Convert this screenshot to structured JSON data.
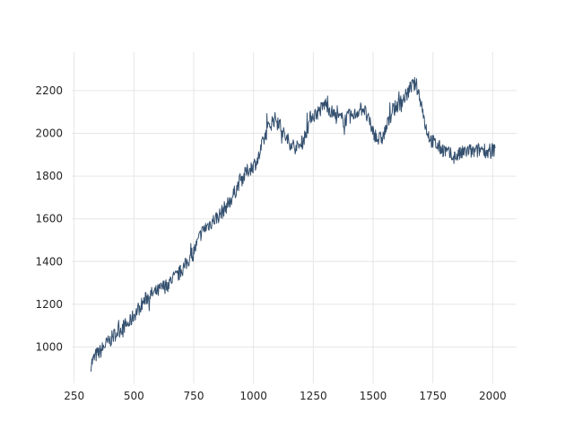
{
  "chart_data": {
    "type": "line",
    "title": "",
    "xlabel": "",
    "ylabel": "",
    "xlim": [
      240,
      2100
    ],
    "ylim": [
      830,
      2380
    ],
    "x_ticks": [
      250,
      500,
      750,
      1000,
      1250,
      1500,
      1750,
      2000
    ],
    "y_ticks": [
      1000,
      1200,
      1400,
      1600,
      1800,
      2000,
      2200
    ],
    "grid": true,
    "legend": "none",
    "line_color": "#34506f",
    "series": [
      {
        "name": "",
        "x": [
          320,
          340,
          360,
          380,
          400,
          420,
          440,
          460,
          480,
          500,
          520,
          540,
          560,
          580,
          600,
          620,
          640,
          660,
          680,
          700,
          720,
          740,
          760,
          780,
          800,
          820,
          840,
          860,
          880,
          900,
          920,
          940,
          960,
          980,
          1000,
          1020,
          1040,
          1060,
          1080,
          1100,
          1120,
          1140,
          1160,
          1180,
          1200,
          1220,
          1240,
          1260,
          1280,
          1300,
          1320,
          1340,
          1360,
          1380,
          1400,
          1420,
          1440,
          1460,
          1480,
          1500,
          1520,
          1540,
          1560,
          1580,
          1600,
          1620,
          1640,
          1660,
          1680,
          1700,
          1720,
          1740,
          1760,
          1780,
          1800,
          1820,
          1840,
          1860,
          1880,
          1900,
          1920,
          1940,
          1960,
          1980,
          2000,
          2010
        ],
        "y": [
          920,
          960,
          980,
          1010,
          1030,
          1060,
          1080,
          1100,
          1110,
          1150,
          1180,
          1210,
          1240,
          1250,
          1260,
          1280,
          1290,
          1320,
          1330,
          1360,
          1390,
          1430,
          1470,
          1530,
          1560,
          1580,
          1600,
          1620,
          1650,
          1680,
          1720,
          1770,
          1800,
          1830,
          1850,
          1880,
          1960,
          2020,
          2060,
          2070,
          2010,
          1970,
          1950,
          1930,
          1950,
          2000,
          2080,
          2090,
          2110,
          2140,
          2110,
          2080,
          2070,
          2060,
          2080,
          2080,
          2110,
          2120,
          2060,
          2010,
          1970,
          1980,
          2040,
          2100,
          2130,
          2150,
          2180,
          2220,
          2230,
          2150,
          2030,
          1970,
          1950,
          1930,
          1920,
          1900,
          1890,
          1900,
          1910,
          1920,
          1910,
          1920,
          1930,
          1910,
          1920,
          1930
        ]
      }
    ]
  }
}
